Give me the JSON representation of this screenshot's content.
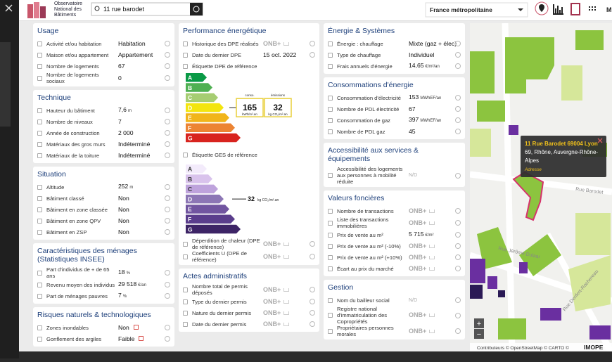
{
  "header": {
    "logo_lines": [
      "Observatoire",
      "National des",
      "Bâtiments"
    ],
    "search": "11 rue barodet",
    "region": "France métropolitaine",
    "menu_cut": "M"
  },
  "columns": [
    {
      "sections": [
        {
          "title": "Usage",
          "rows": [
            {
              "label": "Activité et/ou habitation",
              "value": "Habitation"
            },
            {
              "label": "Maison et/ou appartement",
              "value": "Appartement"
            },
            {
              "label": "Nombre de logements",
              "value": "67"
            },
            {
              "label": "Nombre de logements sociaux",
              "value": "0"
            }
          ]
        },
        {
          "title": "Technique",
          "rows": [
            {
              "label": "Hauteur du bâtiment",
              "value": "7,6",
              "unit": "m"
            },
            {
              "label": "Nombre de niveaux",
              "value": "7"
            },
            {
              "label": "Année de construction",
              "value": "2 000"
            },
            {
              "label": "Matériaux des gros murs",
              "value": "Indéterminé"
            },
            {
              "label": "Matériaux de la toiture",
              "value": "Indéterminé"
            }
          ]
        },
        {
          "title": "Situation",
          "rows": [
            {
              "label": "Altitude",
              "value": "252",
              "unit": "m"
            },
            {
              "label": "Bâtiment classé",
              "value": "Non"
            },
            {
              "label": "Bâtiment en zone classée",
              "value": "Non"
            },
            {
              "label": "Bâtiment en zone QPV",
              "value": "Non"
            },
            {
              "label": "Bâtiment en ZSP",
              "value": "Non"
            }
          ]
        },
        {
          "title": "Caractéristiques des ménages (Statistiques INSEE)",
          "rows": [
            {
              "label": "Part d'individus de + de 65 ans",
              "value": "18",
              "unit": "%"
            },
            {
              "label": "Revenu moyen des individus",
              "value": "29 518",
              "unit": "€/an"
            },
            {
              "label": "Part de ménages pauvres",
              "value": "7",
              "unit": "%"
            }
          ]
        },
        {
          "title": "Risques naturels & technologiques",
          "rows": [
            {
              "label": "Zones inondables",
              "value": "Non",
              "link": true
            },
            {
              "label": "Gonflement des argiles",
              "value": "Faible",
              "link": true
            }
          ]
        }
      ]
    },
    {
      "sections": [
        {
          "title": "Performance énergétique",
          "rows": [
            {
              "label": "Historique des DPE réalisés",
              "badge": "ONB+"
            },
            {
              "label": "Date du dernier DPE",
              "value": "15 oct. 2022"
            },
            {
              "label": "Étiquette DPE de référence",
              "chart": {
                "kind": "dpe",
                "letters": [
                  "A",
                  "B",
                  "C",
                  "D",
                  "E",
                  "F",
                  "G"
                ],
                "colors": [
                  "#0a9a46",
                  "#4fb052",
                  "#a6cd72",
                  "#f3e50f",
                  "#f1b51a",
                  "#ec8433",
                  "#d8241f"
                ],
                "active": "D",
                "boxes": [
                  {
                    "title": "conso.",
                    "value": "165",
                    "unit": "kWh/m².an"
                  },
                  {
                    "title": "émissions",
                    "value": "32",
                    "unit": "kg CO₂/m².an"
                  }
                ]
              }
            },
            {
              "label": "Étiquette GES de référence",
              "chart": {
                "kind": "ges",
                "letters": [
                  "A",
                  "B",
                  "C",
                  "D",
                  "E",
                  "F",
                  "G"
                ],
                "colors": [
                  "#f3ebfb",
                  "#d9c3ec",
                  "#bea3dc",
                  "#8c76b5",
                  "#7155a0",
                  "#5a3d8c",
                  "#3d2466"
                ],
                "active": "D",
                "value": "32",
                "unit": "kg CO₂/m².an"
              }
            },
            {
              "label": "Déperdition de chaleur (DPE de référence)",
              "badge": "ONB+"
            },
            {
              "label": "Coefficients U (DPE de référence)",
              "badge": "ONB+"
            }
          ]
        },
        {
          "title": "Actes administratifs",
          "rows": [
            {
              "label": "Nombre total de permis déposés",
              "badge": "ONB+"
            },
            {
              "label": "Type du dernier permis",
              "badge": "ONB+"
            },
            {
              "label": "Nature du dernier permis",
              "badge": "ONB+"
            },
            {
              "label": "Date du dernier permis",
              "badge": "ONB+"
            }
          ]
        }
      ]
    },
    {
      "sections": [
        {
          "title": "Énergie & Systèmes",
          "rows": [
            {
              "label": "Énergie : chauffage",
              "value": "Mixte (gaz + élec)"
            },
            {
              "label": "Type de chauffage",
              "value": "Individuel"
            },
            {
              "label": "Frais annuels d'énergie",
              "value": "14,65",
              "unit": "€/m²/an"
            }
          ]
        },
        {
          "title": "Consommations d'énergie",
          "rows": [
            {
              "label": "Consommation d'électricité",
              "value": "153",
              "unit": "MWhEF/an"
            },
            {
              "label": "Nombre de PDL électricité",
              "value": "67"
            },
            {
              "label": "Consommation de gaz",
              "value": "397",
              "unit": "MWhEF/an"
            },
            {
              "label": "Nombre de PDL gaz",
              "value": "45"
            }
          ]
        },
        {
          "title": "Accessibilité aux services & équipements",
          "rows": [
            {
              "label": "Accessibilité des logements aux personnes à mobilité réduite",
              "na": "N/D"
            }
          ]
        },
        {
          "title": "Valeurs foncières",
          "rows": [
            {
              "label": "Nombre de transactions",
              "badge": "ONB+"
            },
            {
              "label": "Liste des transactions immobilières",
              "badge": "ONB+"
            },
            {
              "label": "Prix de vente au m²",
              "value": "5 715",
              "unit": "€/m²"
            },
            {
              "label": "Prix de vente au m² (-10%)",
              "badge": "ONB+"
            },
            {
              "label": "Prix de vente au m² (+10%)",
              "badge": "ONB+"
            },
            {
              "label": "Écart au prix du marché",
              "badge": "ONB+"
            }
          ]
        },
        {
          "title": "Gestion",
          "rows": [
            {
              "label": "Nom du bailleur social",
              "na": "N/D"
            },
            {
              "label": "Registre national d'immatriculation des Copropriétés",
              "badge": "ONB+"
            },
            {
              "label": "Propriétaires personnes morales",
              "badge": "ONB+"
            }
          ]
        }
      ]
    }
  ],
  "map": {
    "popup": {
      "title": "11 Rue Barodet 69004 Lyon",
      "text": "69, Rhône, Auvergne-Rhône-Alpes",
      "link": "Adresse"
    },
    "streets": [
      "Rue Barodet",
      "Rue Jérôme Dulaar",
      "Rue Denfert-Rochereau"
    ],
    "zoom_in": "+",
    "zoom_out": "−",
    "attribution": "Contributeurs © OpenStreetMap © CARTO ©",
    "brand": "IMOPE"
  }
}
